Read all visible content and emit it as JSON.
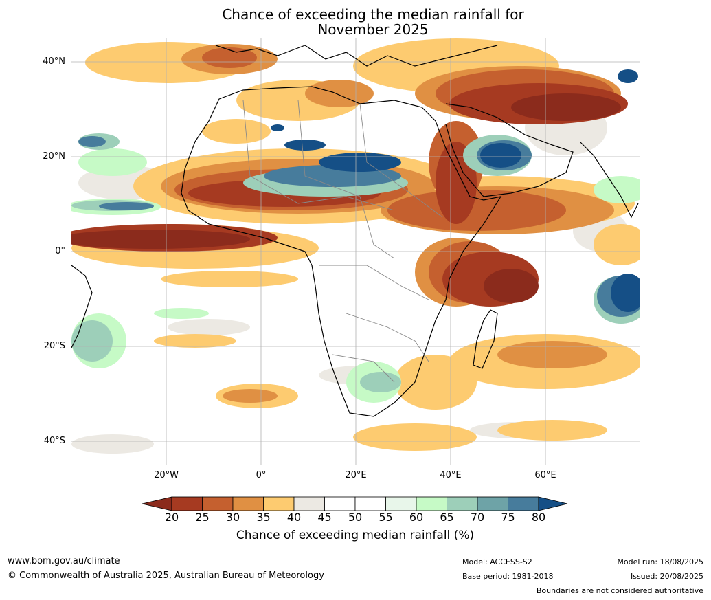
{
  "title": {
    "line1": "Chance of exceeding the median rainfall for",
    "line2": "November 2025"
  },
  "axes": {
    "lat_labels": [
      "40°N",
      "20°N",
      "0°",
      "20°S",
      "40°S"
    ],
    "lon_labels": [
      "20°W",
      "0°",
      "20°E",
      "40°E",
      "60°E"
    ]
  },
  "colorbar": {
    "ticks": [
      "20",
      "25",
      "30",
      "35",
      "40",
      "45",
      "50",
      "55",
      "60",
      "65",
      "70",
      "75",
      "80"
    ],
    "colors": [
      "#a63a21",
      "#c5602f",
      "#e09043",
      "#fdcb70",
      "#ece9e3",
      "#ffffff",
      "#ffffff",
      "#e8f6ea",
      "#c6fac6",
      "#9dcfb9",
      "#6ea3a7",
      "#477c9c"
    ],
    "under_color": "#8b2b1c",
    "over_color": "#154f86",
    "label": "Chance of exceeding median rainfall (%)"
  },
  "footer": {
    "website": "www.bom.gov.au/climate",
    "copyright": "© Commonwealth of Australia 2025, Australian Bureau of Meteorology",
    "model": "Model: ACCESS-S2",
    "base_period": "Base period: 1981-2018",
    "model_run": "Model run: 18/08/2025",
    "issued": "Issued: 20/08/2025",
    "disclaimer": "Boundaries are not considered authoritative"
  }
}
